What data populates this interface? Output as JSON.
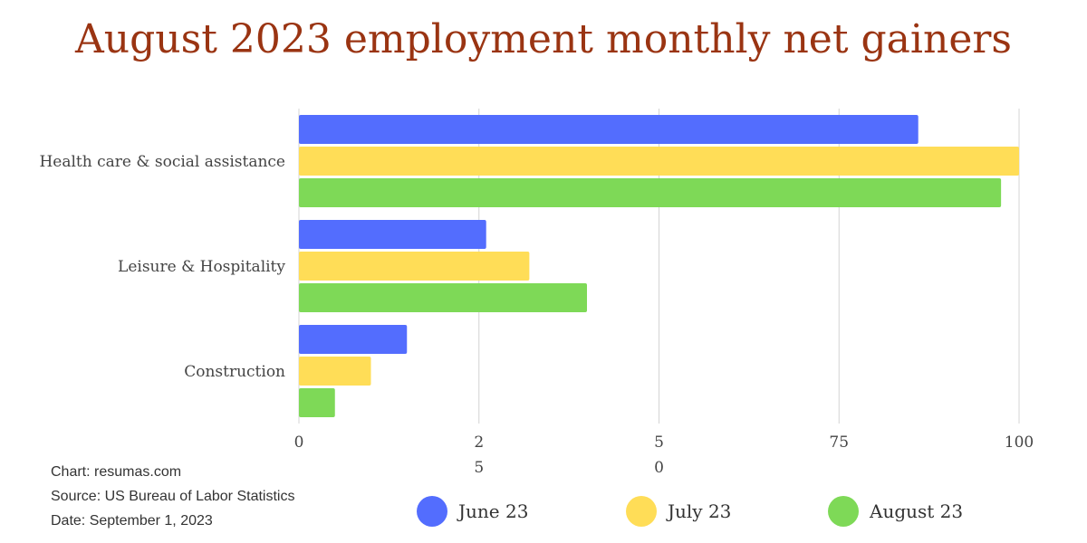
{
  "chart_data": {
    "type": "bar",
    "orientation": "horizontal",
    "title": "August 2023 employment monthly net gainers",
    "categories": [
      "Health care & social assistance",
      "Leisure & Hospitality",
      "Construction"
    ],
    "series": [
      {
        "name": "June 23",
        "color": "#536dfe",
        "values": [
          86,
          26,
          15
        ]
      },
      {
        "name": "July 23",
        "color": "#ffdd57",
        "values": [
          100,
          32,
          10
        ]
      },
      {
        "name": "August 23",
        "color": "#7ed957",
        "values": [
          97.5,
          40,
          5
        ]
      }
    ],
    "xlim": [
      0,
      100
    ],
    "ticks": [
      {
        "value": 0,
        "lines": [
          "0"
        ]
      },
      {
        "value": 25,
        "lines": [
          "2",
          "5"
        ]
      },
      {
        "value": 50,
        "lines": [
          "5",
          "0"
        ]
      },
      {
        "value": 75,
        "lines": [
          "75"
        ]
      },
      {
        "value": 100,
        "lines": [
          "100"
        ]
      }
    ],
    "grid": true,
    "legend_position": "bottom"
  },
  "credits": {
    "chart": "Chart: resumas.com",
    "source": "Source: US Bureau of Labor Statistics",
    "date": "Date: September 1, 2023"
  }
}
